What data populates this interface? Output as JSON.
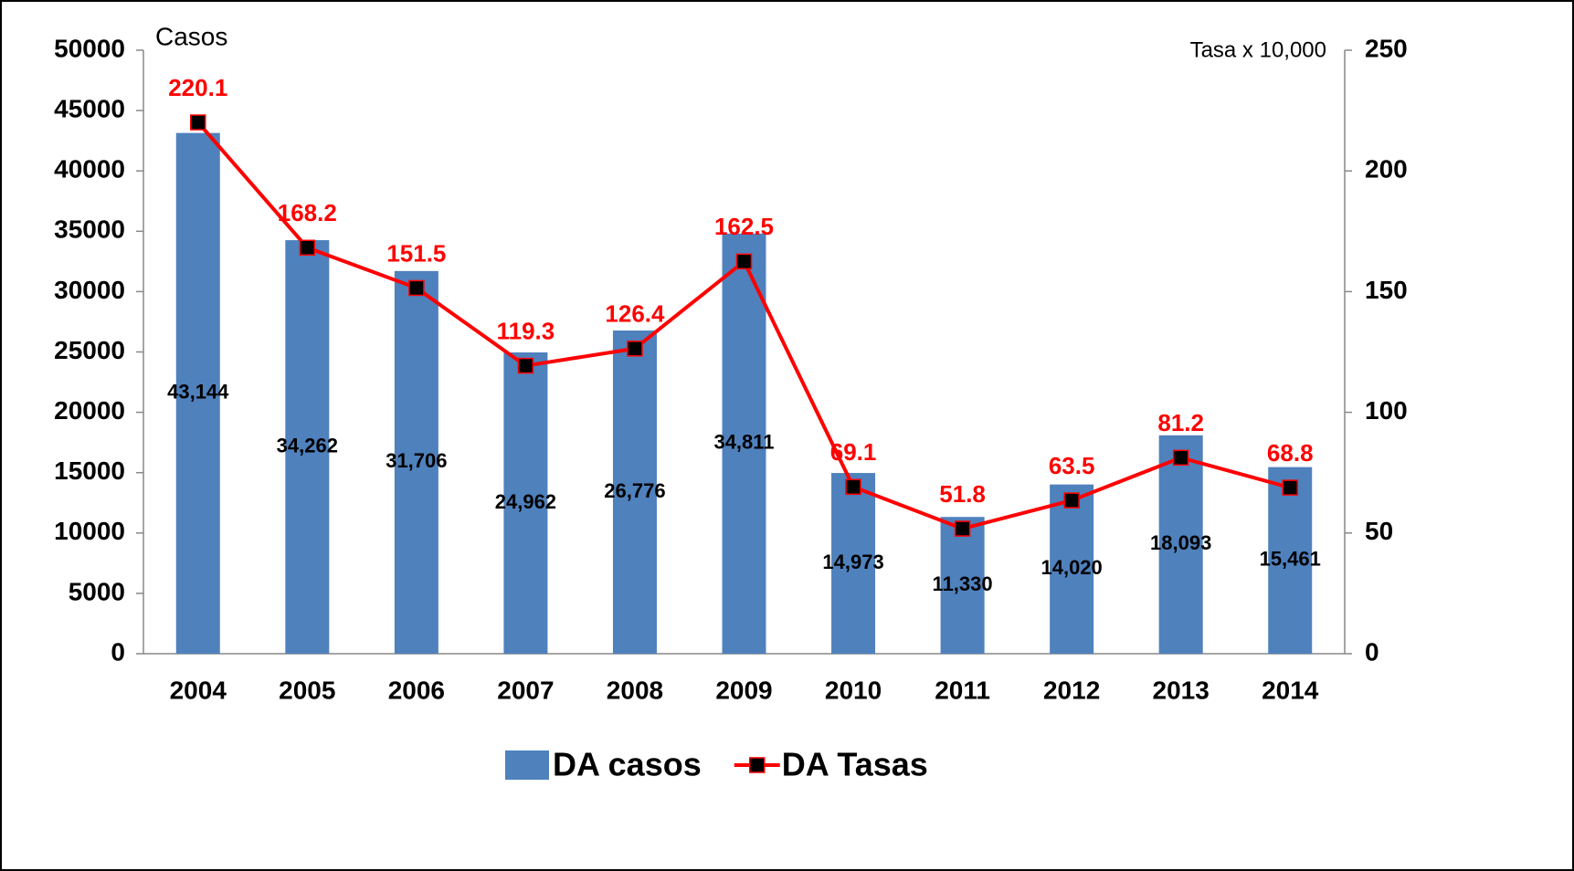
{
  "chart_data": {
    "type": "bar",
    "y_label": "Casos",
    "y2_label": "Tasa x 10,000",
    "categories": [
      "2004",
      "2005",
      "2006",
      "2007",
      "2008",
      "2009",
      "2010",
      "2011",
      "2012",
      "2013",
      "2014"
    ],
    "series": [
      {
        "name": "DA casos",
        "type": "bar",
        "color": "#4f81bd",
        "values": [
          43144,
          34262,
          31706,
          24962,
          26776,
          34811,
          14973,
          11330,
          14020,
          18093,
          15461
        ],
        "value_labels": [
          "43,144",
          "34,262",
          "31,706",
          "24,962",
          "26,776",
          "34,811",
          "14,973",
          "11,330",
          "14,020",
          "18,093",
          "15,461"
        ]
      },
      {
        "name": "DA Tasas",
        "type": "line",
        "axis": "y2",
        "color": "#ff0000",
        "marker_color": "#000000",
        "values": [
          220.1,
          168.2,
          151.5,
          119.3,
          126.4,
          162.5,
          69.1,
          51.8,
          63.5,
          81.2,
          68.8
        ]
      }
    ],
    "ylim": [
      0,
      50000
    ],
    "yticks": [
      0,
      5000,
      10000,
      15000,
      20000,
      25000,
      30000,
      35000,
      40000,
      45000,
      50000
    ],
    "y2lim": [
      0,
      250
    ],
    "y2ticks": [
      0,
      50,
      100,
      150,
      200,
      250
    ],
    "legend": "bottom"
  }
}
